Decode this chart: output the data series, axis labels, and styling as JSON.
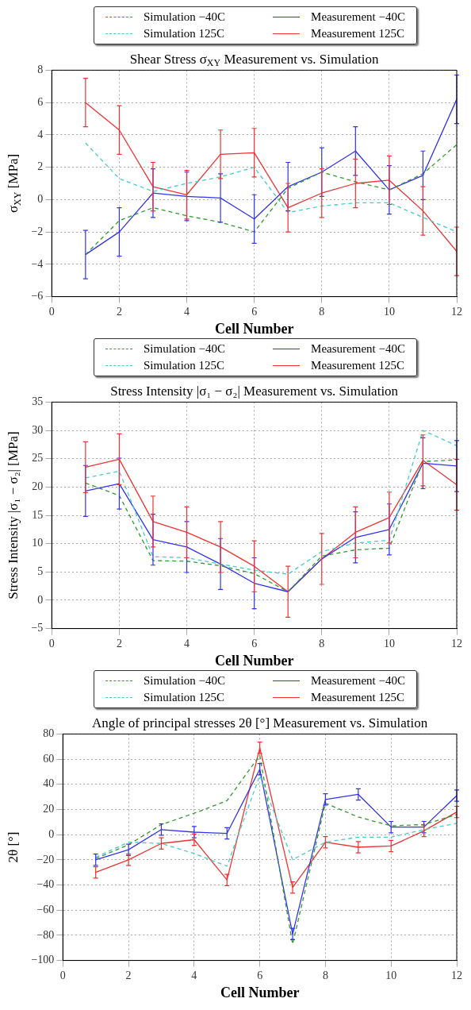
{
  "chart_data": [
    {
      "type": "line",
      "title": "Shear Stress σ$_{XY}$ Measurement vs. Simulation",
      "xlabel": "Cell Number",
      "ylabel": "σ$_{XY}$ [MPa]",
      "x": [
        1,
        2,
        3,
        4,
        5,
        6,
        7,
        8,
        9,
        10,
        11,
        12
      ],
      "xlim": [
        0,
        12
      ],
      "xticks": [
        0,
        2,
        4,
        6,
        8,
        10,
        12
      ],
      "ylim": [
        -6,
        8
      ],
      "yticks": [
        -6,
        -4,
        -2,
        0,
        2,
        4,
        6,
        8
      ],
      "grid": true,
      "legend": "top",
      "series": [
        {
          "name": "Simulation −40C",
          "color": "#339933",
          "line_style": "dashed",
          "values": [
            -3.4,
            -1.3,
            -0.5,
            -1.0,
            -1.4,
            -2.0,
            0.7,
            1.7,
            1.1,
            0.6,
            1.6,
            3.4
          ]
        },
        {
          "name": "Simulation 125C",
          "color": "#44cccc",
          "line_style": "dashed",
          "values": [
            3.5,
            1.3,
            0.5,
            1.0,
            1.4,
            2.0,
            -0.8,
            -0.4,
            -0.2,
            -0.2,
            -1.1,
            -2.0
          ]
        },
        {
          "name": "Measurement −40C",
          "color": "#3333ee",
          "line_style": "solid",
          "values": [
            -3.4,
            -2.0,
            0.4,
            0.2,
            0.1,
            -1.2,
            0.8,
            1.7,
            3.0,
            0.6,
            1.5,
            6.2
          ],
          "errors": [
            1.5,
            1.5,
            1.5,
            1.5,
            1.5,
            1.5,
            1.5,
            1.5,
            1.5,
            1.5,
            1.5,
            1.5
          ]
        },
        {
          "name": "Measurement 125C",
          "color": "#ee3333",
          "line_style": "solid",
          "values": [
            6.0,
            4.3,
            0.8,
            0.3,
            2.8,
            2.9,
            -0.5,
            0.4,
            1.0,
            1.2,
            -0.7,
            -3.2
          ],
          "errors": [
            1.5,
            1.5,
            1.5,
            1.5,
            1.5,
            1.5,
            1.5,
            1.5,
            1.5,
            1.5,
            1.5,
            1.5
          ]
        }
      ]
    },
    {
      "type": "line",
      "title": "Stress Intensity |σ₁ − σ₂| Measurement vs. Simulation",
      "xlabel": "Cell Number",
      "ylabel": "Stress Intensity |σ₁ − σ₂| [MPa]",
      "x": [
        1,
        2,
        3,
        4,
        5,
        6,
        7,
        8,
        9,
        10,
        11,
        12
      ],
      "xlim": [
        0,
        12
      ],
      "xticks": [
        0,
        2,
        4,
        6,
        8,
        10,
        12
      ],
      "ylim": [
        -5,
        35
      ],
      "yticks": [
        -5,
        0,
        5,
        10,
        15,
        20,
        25,
        30,
        35
      ],
      "grid": true,
      "legend": "top",
      "series": [
        {
          "name": "Simulation −40C",
          "color": "#339933",
          "line_style": "dashed",
          "values": [
            20.7,
            18.5,
            7.0,
            6.9,
            6.1,
            4.7,
            1.5,
            7.8,
            8.9,
            9.2,
            24.5,
            24.8
          ]
        },
        {
          "name": "Simulation 125C",
          "color": "#44cccc",
          "line_style": "dashed",
          "values": [
            21.6,
            22.8,
            7.7,
            7.5,
            6.4,
            5.3,
            4.6,
            8.6,
            10.1,
            10.6,
            30.0,
            27.3
          ]
        },
        {
          "name": "Measurement −40C",
          "color": "#3333ee",
          "line_style": "solid",
          "values": [
            19.3,
            20.6,
            10.7,
            9.4,
            6.4,
            3.0,
            1.5,
            7.3,
            11.1,
            12.5,
            24.2,
            23.7
          ],
          "errors": [
            4.5,
            4.5,
            4.5,
            4.5,
            4.5,
            4.5,
            null,
            null,
            4.5,
            4.5,
            4.5,
            4.5
          ]
        },
        {
          "name": "Measurement 125C",
          "color": "#ee3333",
          "line_style": "solid",
          "values": [
            23.5,
            24.9,
            13.9,
            12.0,
            9.4,
            6.0,
            1.5,
            7.3,
            12.0,
            14.6,
            24.7,
            20.4
          ],
          "errors": [
            4.5,
            4.5,
            4.5,
            4.5,
            4.5,
            4.5,
            4.5,
            4.5,
            4.5,
            4.5,
            4.5,
            4.5
          ]
        }
      ]
    },
    {
      "type": "line",
      "title": "Angle of principal stresses 2θ [°] Measurement vs. Simulation",
      "xlabel": "Cell Number",
      "ylabel": "2θ [°]",
      "x": [
        1,
        2,
        3,
        4,
        5,
        6,
        7,
        8,
        9,
        10,
        11,
        12
      ],
      "xlim": [
        0,
        12
      ],
      "xticks": [
        0,
        2,
        4,
        6,
        8,
        10,
        12
      ],
      "ylim": [
        -100,
        80
      ],
      "yticks": [
        -100,
        -80,
        -60,
        -40,
        -20,
        0,
        20,
        40,
        60,
        80
      ],
      "grid": true,
      "legend": "top",
      "series": [
        {
          "name": "Simulation −40C",
          "color": "#339933",
          "line_style": "dashed",
          "values": [
            -19,
            -8,
            8,
            17,
            27,
            63,
            -87,
            25,
            14,
            7,
            8,
            16
          ]
        },
        {
          "name": "Simulation 125C",
          "color": "#44cccc",
          "line_style": "dashed",
          "values": [
            -18,
            -6,
            -7,
            -15,
            -25,
            47,
            -20,
            -6,
            -2,
            -2,
            4,
            9
          ]
        },
        {
          "name": "Measurement −40C",
          "color": "#3333ee",
          "line_style": "solid",
          "values": [
            -20,
            -12,
            4,
            2,
            1,
            52,
            -79,
            28,
            32,
            6,
            6,
            31
          ],
          "errors": [
            4.5,
            4.5,
            4.5,
            4.5,
            4.5,
            4.5,
            4.5,
            4.5,
            4.5,
            4.5,
            4.5,
            4.5
          ]
        },
        {
          "name": "Measurement 125C",
          "color": "#ee3333",
          "line_style": "solid",
          "values": [
            -30,
            -20,
            -7,
            -4,
            -36,
            69,
            -42,
            -6,
            -10,
            -9,
            3,
            18
          ],
          "errors": [
            4.5,
            4.5,
            4.5,
            4.5,
            4.5,
            4.5,
            4.5,
            4.5,
            4.5,
            4.5,
            4.5,
            4.5
          ]
        }
      ]
    }
  ]
}
